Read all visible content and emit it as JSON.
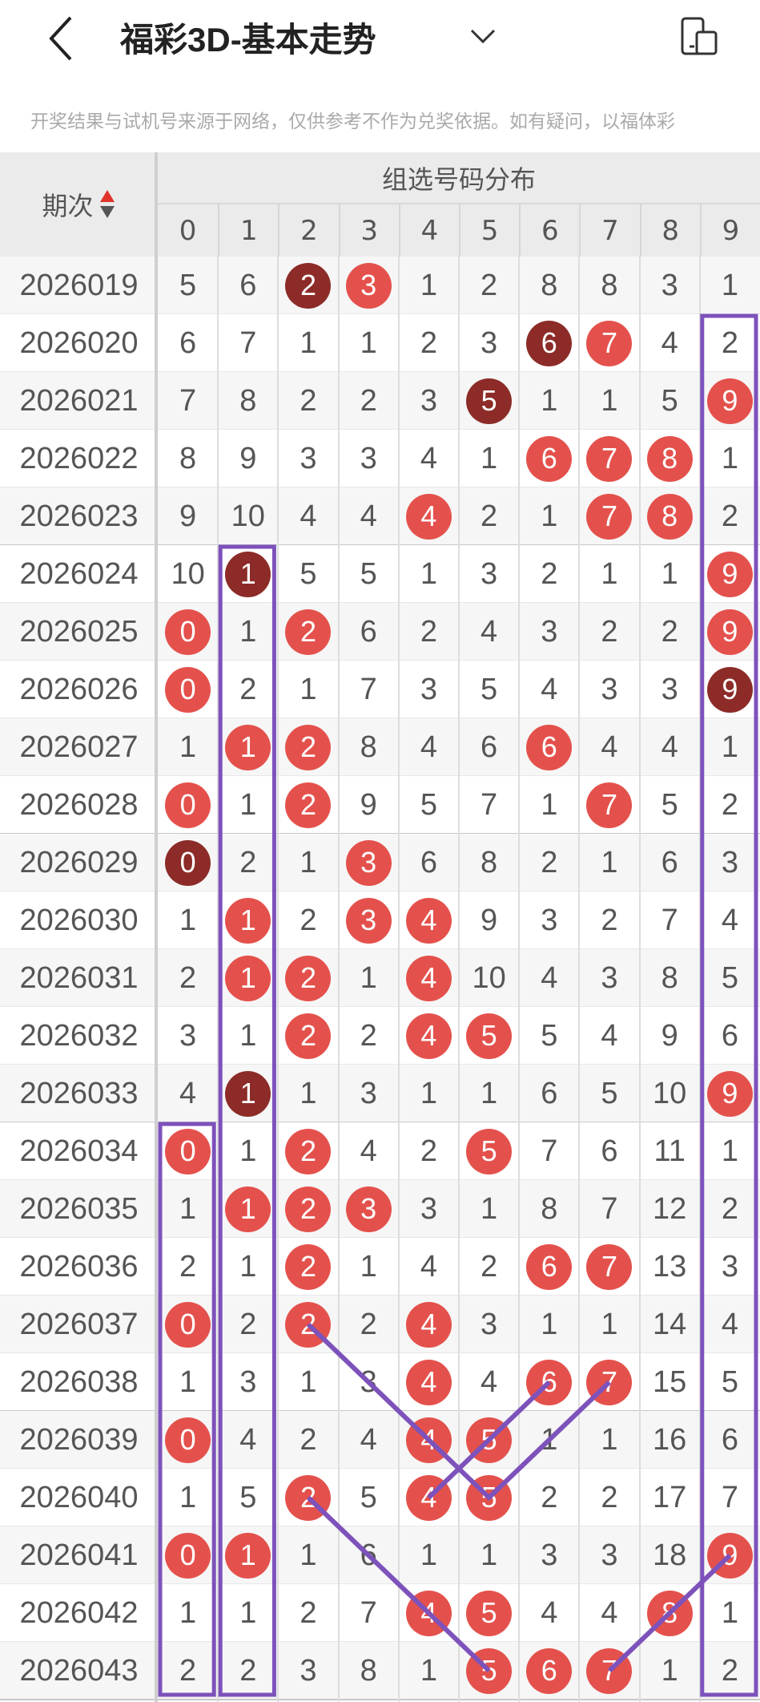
{
  "header": {
    "title": "福彩3D-基本走势",
    "back_icon": "chevron-left-icon",
    "dropdown_icon": "chevron-down-icon",
    "device_icon": "device-switch-icon"
  },
  "notice": "开奖结果与试机号来源于网络，仅供参考不作为兑奖依据。如有疑问，以福体彩",
  "table": {
    "period_header": "期次",
    "group_header": "组选号码分布",
    "digits": [
      "0",
      "1",
      "2",
      "3",
      "4",
      "5",
      "6",
      "7",
      "8",
      "9"
    ],
    "rows": [
      {
        "period": "2026019",
        "values": [
          "5",
          "6",
          "2",
          "3",
          "1",
          "2",
          "8",
          "8",
          "3",
          "1"
        ],
        "hits": [
          2,
          3
        ],
        "dark": [
          2
        ]
      },
      {
        "period": "2026020",
        "values": [
          "6",
          "7",
          "1",
          "1",
          "2",
          "3",
          "6",
          "7",
          "4",
          "2"
        ],
        "hits": [
          6,
          7
        ],
        "dark": [
          6
        ]
      },
      {
        "period": "2026021",
        "values": [
          "7",
          "8",
          "2",
          "2",
          "3",
          "5",
          "1",
          "1",
          "5",
          "9"
        ],
        "hits": [
          5,
          9
        ],
        "dark": [
          5
        ]
      },
      {
        "period": "2026022",
        "values": [
          "8",
          "9",
          "3",
          "3",
          "4",
          "1",
          "6",
          "7",
          "8",
          "1"
        ],
        "hits": [
          6,
          7,
          8
        ],
        "dark": []
      },
      {
        "period": "2026023",
        "values": [
          "9",
          "10",
          "4",
          "4",
          "4",
          "2",
          "1",
          "7",
          "8",
          "2"
        ],
        "hits": [
          4,
          7,
          8
        ],
        "dark": []
      },
      {
        "period": "2026024",
        "values": [
          "10",
          "1",
          "5",
          "5",
          "1",
          "3",
          "2",
          "1",
          "1",
          "9"
        ],
        "hits": [
          1,
          9
        ],
        "dark": [
          1
        ]
      },
      {
        "period": "2026025",
        "values": [
          "0",
          "1",
          "2",
          "6",
          "2",
          "4",
          "3",
          "2",
          "2",
          "9"
        ],
        "hits": [
          0,
          2,
          9
        ],
        "dark": []
      },
      {
        "period": "2026026",
        "values": [
          "0",
          "2",
          "1",
          "7",
          "3",
          "5",
          "4",
          "3",
          "3",
          "9"
        ],
        "hits": [
          0,
          9
        ],
        "dark": [
          9
        ]
      },
      {
        "period": "2026027",
        "values": [
          "1",
          "1",
          "2",
          "8",
          "4",
          "6",
          "6",
          "4",
          "4",
          "1"
        ],
        "hits": [
          1,
          2,
          6
        ],
        "dark": []
      },
      {
        "period": "2026028",
        "values": [
          "0",
          "1",
          "2",
          "9",
          "5",
          "7",
          "1",
          "7",
          "5",
          "2"
        ],
        "hits": [
          0,
          2,
          7
        ],
        "dark": []
      },
      {
        "period": "2026029",
        "values": [
          "0",
          "2",
          "1",
          "3",
          "6",
          "8",
          "2",
          "1",
          "6",
          "3"
        ],
        "hits": [
          0,
          3
        ],
        "dark": [
          0
        ]
      },
      {
        "period": "2026030",
        "values": [
          "1",
          "1",
          "2",
          "3",
          "4",
          "9",
          "3",
          "2",
          "7",
          "4"
        ],
        "hits": [
          1,
          3,
          4
        ],
        "dark": []
      },
      {
        "period": "2026031",
        "values": [
          "2",
          "1",
          "2",
          "1",
          "4",
          "10",
          "4",
          "3",
          "8",
          "5"
        ],
        "hits": [
          1,
          2,
          4
        ],
        "dark": []
      },
      {
        "period": "2026032",
        "values": [
          "3",
          "1",
          "2",
          "2",
          "4",
          "5",
          "5",
          "4",
          "9",
          "6"
        ],
        "hits": [
          2,
          4,
          5
        ],
        "dark": []
      },
      {
        "period": "2026033",
        "values": [
          "4",
          "1",
          "1",
          "3",
          "1",
          "1",
          "6",
          "5",
          "10",
          "9"
        ],
        "hits": [
          1,
          9
        ],
        "dark": [
          1
        ]
      },
      {
        "period": "2026034",
        "values": [
          "0",
          "1",
          "2",
          "4",
          "2",
          "5",
          "7",
          "6",
          "11",
          "1"
        ],
        "hits": [
          0,
          2,
          5
        ],
        "dark": []
      },
      {
        "period": "2026035",
        "values": [
          "1",
          "1",
          "2",
          "3",
          "3",
          "1",
          "8",
          "7",
          "12",
          "2"
        ],
        "hits": [
          1,
          2,
          3
        ],
        "dark": []
      },
      {
        "period": "2026036",
        "values": [
          "2",
          "1",
          "2",
          "1",
          "4",
          "2",
          "6",
          "7",
          "13",
          "3"
        ],
        "hits": [
          2,
          6,
          7
        ],
        "dark": []
      },
      {
        "period": "2026037",
        "values": [
          "0",
          "2",
          "2",
          "2",
          "4",
          "3",
          "1",
          "1",
          "14",
          "4"
        ],
        "hits": [
          0,
          2,
          4
        ],
        "dark": []
      },
      {
        "period": "2026038",
        "values": [
          "1",
          "3",
          "1",
          "3",
          "4",
          "4",
          "6",
          "7",
          "15",
          "5"
        ],
        "hits": [
          4,
          6,
          7
        ],
        "dark": []
      },
      {
        "period": "2026039",
        "values": [
          "0",
          "4",
          "2",
          "4",
          "4",
          "5",
          "1",
          "1",
          "16",
          "6"
        ],
        "hits": [
          0,
          4,
          5
        ],
        "dark": []
      },
      {
        "period": "2026040",
        "values": [
          "1",
          "5",
          "2",
          "5",
          "4",
          "5",
          "2",
          "2",
          "17",
          "7"
        ],
        "hits": [
          2,
          4,
          5
        ],
        "dark": []
      },
      {
        "period": "2026041",
        "values": [
          "0",
          "1",
          "1",
          "6",
          "1",
          "1",
          "3",
          "3",
          "18",
          "9"
        ],
        "hits": [
          0,
          1,
          9
        ],
        "dark": []
      },
      {
        "period": "2026042",
        "values": [
          "1",
          "1",
          "2",
          "7",
          "4",
          "5",
          "4",
          "4",
          "8",
          "1"
        ],
        "hits": [
          4,
          5,
          8
        ],
        "dark": []
      },
      {
        "period": "2026043",
        "values": [
          "2",
          "2",
          "3",
          "8",
          "1",
          "5",
          "6",
          "7",
          "1",
          "2"
        ],
        "hits": [
          5,
          6,
          7
        ],
        "dark": []
      }
    ]
  },
  "annotations": {
    "boxes": [
      {
        "digit": 9,
        "from": "2026020",
        "to": "2026043"
      },
      {
        "digit": 1,
        "from": "2026024",
        "to": "2026043"
      },
      {
        "digit": 0,
        "from": "2026034",
        "to": "2026043"
      }
    ],
    "lines": [
      [
        [
          "2026037",
          2
        ],
        [
          "2026039",
          4
        ],
        [
          "2026040",
          5
        ],
        [
          "2026038",
          7
        ]
      ],
      [
        [
          "2026040",
          4
        ],
        [
          "2026039",
          5
        ],
        [
          "2026038",
          6
        ]
      ],
      [
        [
          "2026040",
          2
        ],
        [
          "2026042",
          4
        ],
        [
          "2026043",
          5
        ]
      ],
      [
        [
          "2026043",
          7
        ],
        [
          "2026042",
          8
        ],
        [
          "2026041",
          9
        ]
      ]
    ]
  },
  "colors": {
    "hit": "#e4514c",
    "repeat": "#8c2b27",
    "annotation": "#7d52bb",
    "sort_up": "#e0332b",
    "sort_down": "#555555"
  }
}
